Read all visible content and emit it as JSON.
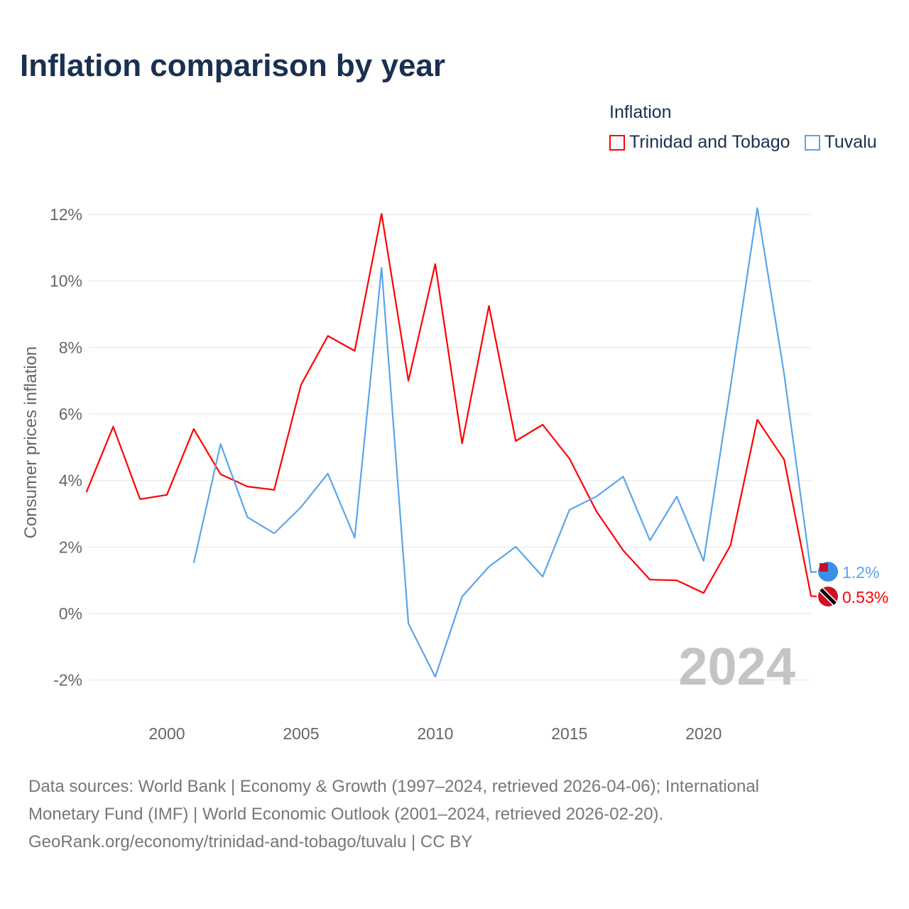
{
  "title": "Inflation comparison by year",
  "legend": {
    "title": "Inflation",
    "items": [
      {
        "label": "Trinidad and Tobago",
        "color": "#ff0000"
      },
      {
        "label": "Tuvalu",
        "color": "#5aa5ea"
      }
    ]
  },
  "source": {
    "line1": "Data sources: World Bank | Economy & Growth (1997–2024, retrieved 2026-04-06); International",
    "line2": "Monetary Fund (IMF) | World Economic Outlook (2001–2024, retrieved 2026-02-20).",
    "line3": "GeoRank.org/economy/trinidad-and-tobago/tuvalu | CC BY"
  },
  "chart_data": {
    "type": "line",
    "title": "Inflation comparison by year",
    "ylabel": "Consumer prices inflation",
    "xlabel": "",
    "xlim": [
      1997,
      2024
    ],
    "ylim": [
      -3,
      12.5
    ],
    "yticks": [
      -2,
      0,
      2,
      4,
      6,
      8,
      10,
      12
    ],
    "ytick_labels": [
      "-2%",
      "0%",
      "2%",
      "4%",
      "6%",
      "8%",
      "10%",
      "12%"
    ],
    "xticks": [
      2000,
      2005,
      2010,
      2015,
      2020
    ],
    "xtick_labels": [
      "2000",
      "2005",
      "2010",
      "2015",
      "2020"
    ],
    "year_watermark": "2024",
    "grid": true,
    "series": [
      {
        "name": "Trinidad and Tobago",
        "color": "#ff0000",
        "end_label": "0.53%",
        "x": [
          1997,
          1998,
          1999,
          2000,
          2001,
          2002,
          2003,
          2004,
          2005,
          2006,
          2007,
          2008,
          2009,
          2010,
          2011,
          2012,
          2013,
          2014,
          2015,
          2016,
          2017,
          2018,
          2019,
          2020,
          2021,
          2022,
          2023,
          2024
        ],
        "values": [
          3.65,
          5.62,
          3.44,
          3.57,
          5.55,
          4.19,
          3.82,
          3.72,
          6.88,
          8.35,
          7.9,
          12.02,
          7.0,
          10.51,
          5.12,
          9.25,
          5.19,
          5.68,
          4.66,
          3.08,
          1.9,
          1.02,
          1.0,
          0.62,
          2.05,
          5.83,
          4.63,
          0.53
        ]
      },
      {
        "name": "Tuvalu",
        "color": "#5aa5ea",
        "end_label": "1.2%",
        "x": [
          2001,
          2002,
          2003,
          2004,
          2005,
          2006,
          2007,
          2008,
          2009,
          2010,
          2011,
          2012,
          2013,
          2014,
          2015,
          2016,
          2017,
          2018,
          2019,
          2020,
          2021,
          2022,
          2023,
          2024
        ],
        "values": [
          1.52,
          5.1,
          2.9,
          2.41,
          3.2,
          4.21,
          2.28,
          10.4,
          -0.3,
          -1.9,
          0.51,
          1.41,
          2.01,
          1.11,
          3.12,
          3.52,
          4.12,
          2.2,
          3.52,
          1.58,
          6.81,
          12.19,
          7.2,
          1.24
        ]
      }
    ]
  }
}
